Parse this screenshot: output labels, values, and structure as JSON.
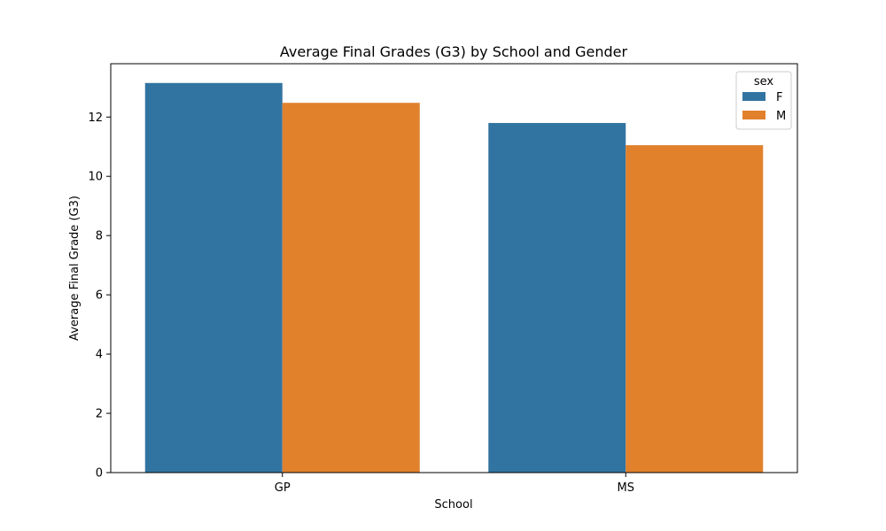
{
  "chart_data": {
    "type": "bar",
    "title": "Average Final Grades (G3) by School and Gender",
    "xlabel": "School",
    "ylabel": "Average Final Grade (G3)",
    "categories": [
      "GP",
      "MS"
    ],
    "series": [
      {
        "name": "F",
        "color": "#3274a1",
        "values": [
          13.15,
          11.8
        ]
      },
      {
        "name": "M",
        "color": "#e1812c",
        "values": [
          12.48,
          11.05
        ]
      }
    ],
    "ylim": [
      0,
      13.8
    ],
    "yticks": [
      0,
      2,
      4,
      6,
      8,
      10,
      12
    ],
    "legend": {
      "title": "sex",
      "placement": "top-right"
    },
    "grid": false
  }
}
